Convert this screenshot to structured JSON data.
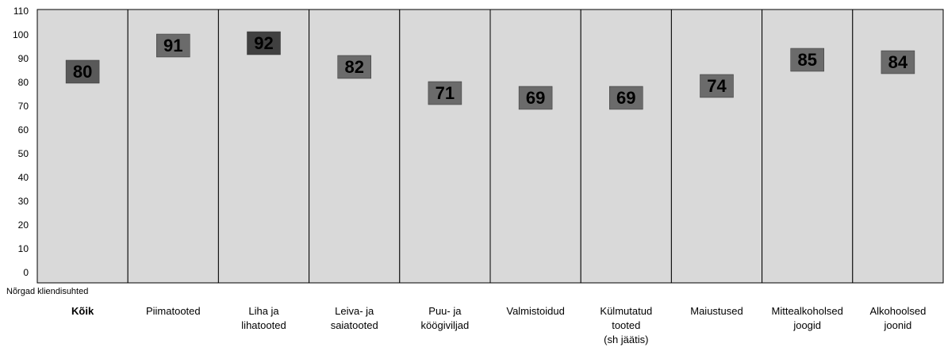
{
  "chart_data": {
    "type": "marker",
    "categories": [
      "Kõik",
      "Piimatooted",
      "Liha ja\nlihatooted",
      "Leiva- ja\nsaiatooted",
      "Puu- ja\nköögiviljad",
      "Valmistoidud",
      "Külmutatud\ntooted\n(sh jäätis)",
      "Maiustused",
      "Mittealkoholsed\njoogid",
      "Alkohoolsed\njoonid"
    ],
    "values": [
      80,
      91,
      92,
      82,
      71,
      69,
      69,
      74,
      85,
      84
    ],
    "colors": [
      "#595959",
      "#6b6b6b",
      "#404040",
      "#6b6b6b",
      "#6b6b6b",
      "#6b6b6b",
      "#6b6b6b",
      "#6b6b6b",
      "#6b6b6b",
      "#6b6b6b"
    ],
    "column_color": "#d9d9d9",
    "ylim": [
      -4,
      111
    ],
    "yticks": [
      0,
      10,
      20,
      30,
      40,
      50,
      60,
      70,
      80,
      90,
      100,
      110
    ],
    "bottom_label": "Nõrgad kliendisuhted"
  }
}
